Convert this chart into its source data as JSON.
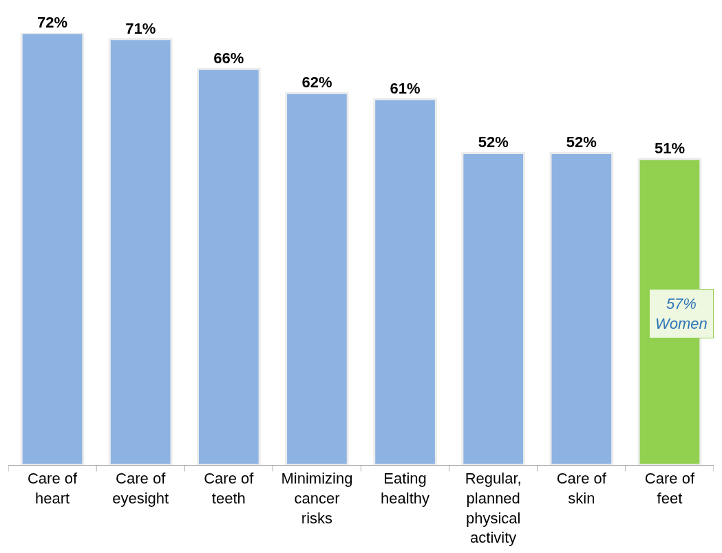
{
  "chart_data": {
    "type": "bar",
    "categories": [
      "Care of heart",
      "Care of eyesight",
      "Care of teeth",
      "Minimizing cancer risks",
      "Eating healthy",
      "Regular, planned physical activity",
      "Care of skin",
      "Care of feet"
    ],
    "values": [
      72,
      71,
      66,
      62,
      61,
      52,
      52,
      51
    ],
    "colors": [
      "#8db3e2",
      "#8db3e2",
      "#8db3e2",
      "#8db3e2",
      "#8db3e2",
      "#8db3e2",
      "#8db3e2",
      "#92d050"
    ],
    "data_labels": true,
    "value_labels": [
      "72%",
      "71%",
      "66%",
      "62%",
      "61%",
      "52%",
      "52%",
      "51%"
    ],
    "legend": false,
    "annotations": [
      "57%\nWomen"
    ]
  }
}
